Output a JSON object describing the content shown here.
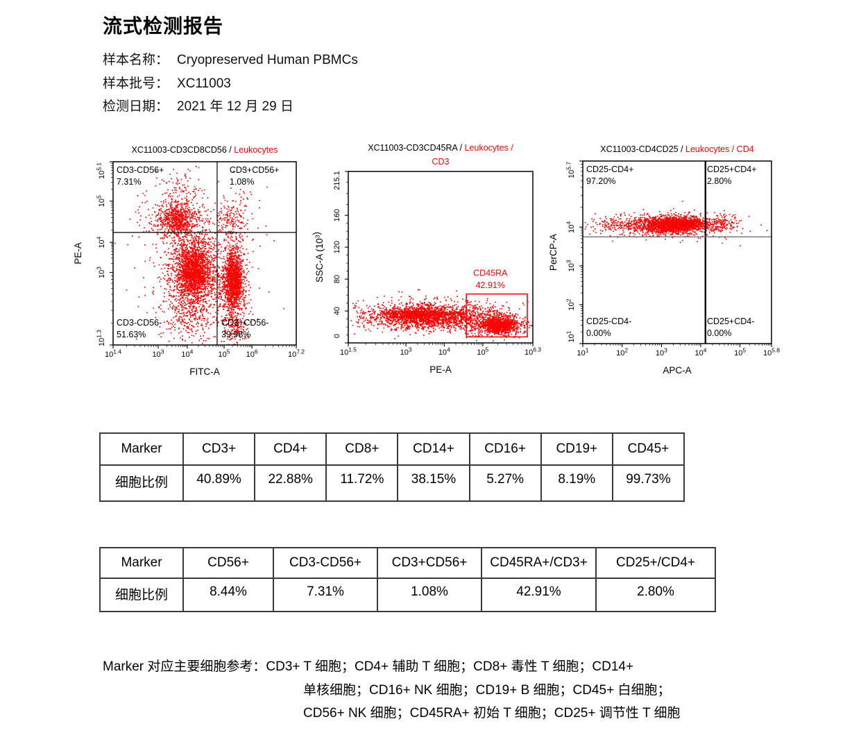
{
  "report": {
    "title": "流式检测报告",
    "info": [
      {
        "label": "样本名称：",
        "value": "Cryopreserved Human PBMCs"
      },
      {
        "label": "样本批号：",
        "value": "XC11003"
      },
      {
        "label": "检测日期：",
        "value": "2021 年 12 月 29 日"
      }
    ]
  },
  "colors": {
    "red_text": "#ff0000",
    "scatter": "#f70505",
    "table_border": "#3a3a3a",
    "frame": "#000000"
  },
  "chart_data": [
    {
      "id": "cd3cd8cd56",
      "type": "scatter",
      "title_parts": [
        {
          "t": "XC11003-CD3CD8CD56 / ",
          "c": "k"
        },
        {
          "t": "Leukocytes",
          "c": "r"
        }
      ],
      "xlabel": "FITC-A",
      "ylabel_parts": [
        {
          "t": "PE-A"
        }
      ],
      "x_axis": {
        "scale": "log",
        "ticks": [
          {
            "exp": "1.4",
            "rel": 0
          },
          {
            "exp": "3",
            "rel": 0.246
          },
          {
            "exp": "4",
            "rel": 0.405
          },
          {
            "exp": "5",
            "rel": 0.606
          },
          {
            "exp": "6",
            "rel": 0.758
          },
          {
            "exp": "7.2",
            "rel": 1
          }
        ]
      },
      "y_axis": {
        "scale": "log",
        "ticks": [
          {
            "exp": "1.3",
            "rel": 0
          },
          {
            "exp": "3",
            "rel": 0.396
          },
          {
            "exp": "4",
            "rel": 0.56
          },
          {
            "exp": "5",
            "rel": 0.785
          },
          {
            "exp": "5.1",
            "rel": 1
          }
        ]
      },
      "quadrant": {
        "x_rel": 0.568,
        "y_rel": 0.614,
        "v_width": 1.2,
        "h_width": 1.2,
        "h_color": "#000000",
        "labels": {
          "tl": {
            "name": "CD3-CD56+",
            "pct": "7.31%"
          },
          "tr": {
            "name": "CD3+CD56+",
            "pct": "1.08%",
            "x_rel": 0.636
          },
          "bl": {
            "name": "CD3-CD56-",
            "pct": "51.63%"
          },
          "br": {
            "name": "CD3+CD56-",
            "pct": "39.98%",
            "x_rel": 0.591
          }
        }
      },
      "clusters": [
        [
          0.44,
          0.41,
          0.045,
          0.075,
          1500
        ],
        [
          0.43,
          0.4,
          0.085,
          0.145,
          900
        ],
        [
          0.42,
          0.17,
          0.07,
          0.07,
          220
        ],
        [
          0.655,
          0.36,
          0.026,
          0.075,
          1100
        ],
        [
          0.655,
          0.33,
          0.045,
          0.13,
          500
        ],
        [
          0.66,
          0.1,
          0.035,
          0.05,
          140
        ],
        [
          0.35,
          0.68,
          0.05,
          0.045,
          550
        ],
        [
          0.34,
          0.7,
          0.09,
          0.08,
          280
        ],
        [
          0.37,
          0.85,
          0.06,
          0.055,
          80
        ],
        [
          0.64,
          0.68,
          0.035,
          0.055,
          120
        ],
        [
          0.67,
          0.73,
          0.07,
          0.09,
          60
        ],
        [
          0.45,
          0.45,
          0.2,
          0.25,
          180
        ]
      ],
      "seed": 7
    },
    {
      "id": "cd3cd45ra",
      "type": "scatter",
      "title_parts": [
        {
          "t": "XC11003-CD3CD45RA / ",
          "c": "k"
        },
        {
          "t": "Leukocytes /",
          "c": "r"
        }
      ],
      "title2_parts": [
        {
          "t": "CD3",
          "c": "r"
        }
      ],
      "xlabel": "PE-A",
      "ylabel_parts": [
        {
          "t": "SSC-A (10"
        },
        {
          "t": "3",
          "sup": true
        },
        {
          "t": ")"
        }
      ],
      "x_axis": {
        "scale": "log",
        "ticks": [
          {
            "exp": "1.5",
            "rel": 0
          },
          {
            "exp": "3",
            "rel": 0.3125
          },
          {
            "exp": "4",
            "rel": 0.52
          },
          {
            "exp": "5",
            "rel": 0.729
          },
          {
            "exp": "6.3",
            "rel": 1
          }
        ]
      },
      "y_axis": {
        "scale": "linear",
        "ticks": [
          {
            "label": "0",
            "rel": 0
          },
          {
            "label": "40",
            "rel": 0.186
          },
          {
            "label": "80",
            "rel": 0.372
          },
          {
            "label": "120",
            "rel": 0.558
          },
          {
            "label": "160",
            "rel": 0.744
          },
          {
            "label": "215.1",
            "rel": 1
          }
        ]
      },
      "gate": {
        "x1_rel": 0.64,
        "x2_rel": 0.97,
        "y1_rel": 0.035,
        "y2_rel": 0.285,
        "name": "CD45RA",
        "pct": "42.91%",
        "label_x_rel": 0.77,
        "label_y_rels": [
          0.39,
          0.32
        ]
      },
      "clusters": [
        [
          0.13,
          0.155,
          0.07,
          0.035,
          120
        ],
        [
          0.38,
          0.16,
          0.1,
          0.033,
          1300
        ],
        [
          0.42,
          0.165,
          0.16,
          0.05,
          500
        ],
        [
          0.4,
          0.175,
          0.11,
          0.008,
          350
        ],
        [
          0.82,
          0.105,
          0.05,
          0.022,
          1000
        ],
        [
          0.78,
          0.13,
          0.09,
          0.045,
          450
        ],
        [
          0.6,
          0.15,
          0.07,
          0.035,
          300
        ]
      ],
      "seed": 11
    },
    {
      "id": "cd4cd25",
      "type": "scatter",
      "title_parts": [
        {
          "t": "XC11003-CD4CD25 / ",
          "c": "k"
        },
        {
          "t": "Leukocytes / CD4",
          "c": "r"
        }
      ],
      "xlabel": "APC-A",
      "ylabel_parts": [
        {
          "t": "PerCP-A"
        }
      ],
      "x_axis": {
        "scale": "log",
        "ticks": [
          {
            "exp": "1",
            "rel": 0
          },
          {
            "exp": "2",
            "rel": 0.208
          },
          {
            "exp": "3",
            "rel": 0.417
          },
          {
            "exp": "4",
            "rel": 0.625
          },
          {
            "exp": "5",
            "rel": 0.833
          },
          {
            "exp": "5.8",
            "rel": 1
          }
        ]
      },
      "y_axis": {
        "scale": "log",
        "ticks": [
          {
            "exp": "1",
            "rel": 0
          },
          {
            "exp": "2",
            "rel": 0.213
          },
          {
            "exp": "3",
            "rel": 0.426
          },
          {
            "exp": "4",
            "rel": 0.638
          },
          {
            "exp": "5.7",
            "rel": 1
          }
        ]
      },
      "quadrant": {
        "x_rel": 0.65,
        "y_rel": 0.585,
        "v_width": 2.4,
        "h_width": 1.4,
        "h_color": "#6f6f6f",
        "labels": {
          "tl": {
            "name": "CD25-CD4+",
            "pct": "97.20%"
          },
          "tr": {
            "name": "CD25+CD4+",
            "pct": "2.80%",
            "x_rel": 0.658
          },
          "bl": {
            "name": "CD25-CD4-",
            "pct": "0.00%"
          },
          "br": {
            "name": "CD25+CD4-",
            "pct": "0.00%",
            "x_rel": 0.658
          }
        }
      },
      "clusters": [
        [
          0.5,
          0.655,
          0.085,
          0.02,
          1500
        ],
        [
          0.4,
          0.648,
          0.13,
          0.027,
          600
        ],
        [
          0.45,
          0.655,
          0.2,
          0.038,
          280
        ],
        [
          0.73,
          0.66,
          0.055,
          0.025,
          130
        ],
        [
          0.15,
          0.65,
          0.08,
          0.03,
          80
        ]
      ],
      "seed": 13
    }
  ],
  "tables": [
    {
      "headers": [
        "Marker",
        "CD3+",
        "CD4+",
        "CD8+",
        "CD14+",
        "CD16+",
        "CD19+",
        "CD45+"
      ],
      "row_label": "细胞比例",
      "values": [
        "40.89%",
        "22.88%",
        "11.72%",
        "38.15%",
        "5.27%",
        "8.19%",
        "99.73%"
      ]
    },
    {
      "headers": [
        "Marker",
        "CD56+",
        "CD3-CD56+",
        "CD3+CD56+",
        "CD45RA+/CD3+",
        "CD25+/CD4+"
      ],
      "row_label": "细胞比例",
      "values": [
        "8.44%",
        "7.31%",
        "1.08%",
        "42.91%",
        "2.80%"
      ]
    }
  ],
  "footnote": {
    "lines": [
      "Marker 对应主要细胞参考：CD3+ T 细胞；CD4+ 辅助 T 细胞；CD8+ 毒性 T 细胞；CD14+",
      "单核细胞；CD16+ NK 细胞；CD19+ B 细胞；CD45+ 白细胞；",
      "CD56+ NK 细胞；CD45RA+ 初始 T 细胞；CD25+ 调节性 T 细胞"
    ]
  }
}
